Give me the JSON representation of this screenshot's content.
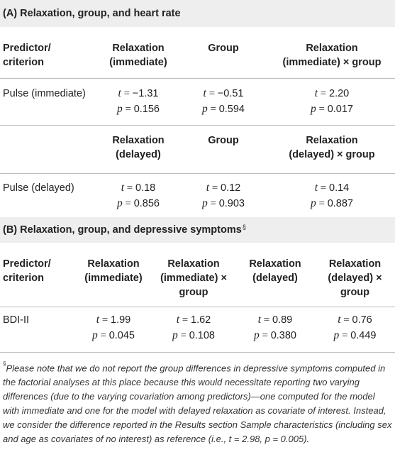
{
  "sectionA": {
    "title": "(A) Relaxation, group, and heart rate",
    "header1": [
      "Predictor/\ncriterion",
      "Relaxation\n(immediate)",
      "Group",
      "Relaxation\n(immediate) × group"
    ],
    "row1": {
      "label": "Pulse (immediate)",
      "t": [
        "−1.31",
        "−0.51",
        "2.20"
      ],
      "p": [
        "0.156",
        "0.594",
        "0.017"
      ]
    },
    "header2": [
      "Relaxation\n(delayed)",
      "Group",
      "Relaxation\n(delayed) × group"
    ],
    "row2": {
      "label": "Pulse (delayed)",
      "t": [
        "0.18",
        "0.12",
        "0.14"
      ],
      "p": [
        "0.856",
        "0.903",
        "0.887"
      ]
    }
  },
  "sectionB": {
    "title": "(B) Relaxation, group, and depressive symptoms",
    "title_mark": "§",
    "header": [
      "Predictor/\ncriterion",
      "Relaxation\n(immediate)",
      "Relaxation\n(immediate) ×\ngroup",
      "Relaxation\n(delayed)",
      "Relaxation\n(delayed) ×\ngroup"
    ],
    "row": {
      "label": "BDI-II",
      "t": [
        "1.99",
        "1.62",
        "0.89",
        "0.76"
      ],
      "p": [
        "0.045",
        "0.108",
        "0.380",
        "0.449"
      ]
    }
  },
  "stat_symbols": {
    "t": "t",
    "p": "p",
    "eq": " = "
  },
  "footnote": {
    "mark": "§",
    "text": "Please note that we do not report the group differences in depressive symptoms computed in the factorial analyses at this place because this would necessitate reporting two varying differences (due to the varying covariation among predictors)—one computed for the model with immediate and one for the model with delayed relaxation as covariate of interest. Instead, we consider the difference reported in the Results section Sample characteristics (including sex and age as covariates of no interest) as reference (i.e., t = 2.98, p = 0.005)."
  }
}
